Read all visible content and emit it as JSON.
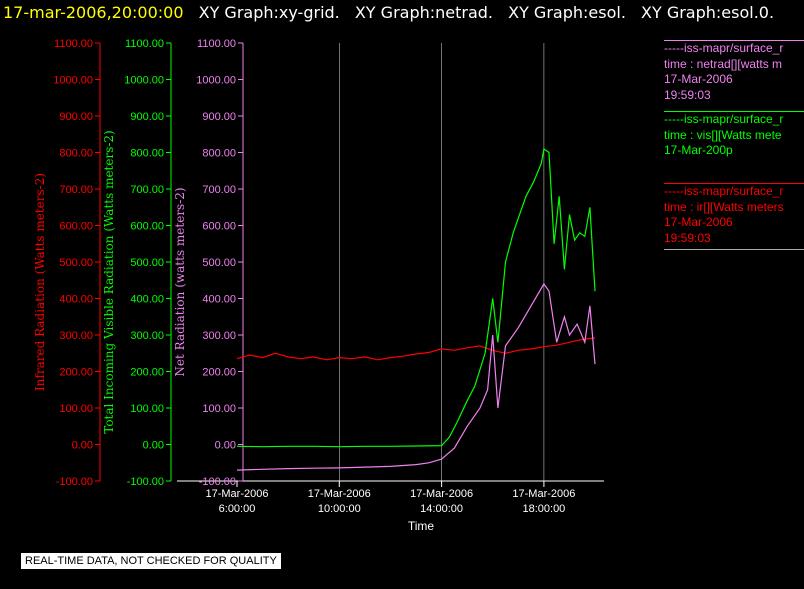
{
  "header": {
    "timestamp": "17-mar-2006,20:00:00",
    "graph_titles": [
      "XY Graph:xy-grid.",
      "XY Graph:netrad.",
      "XY Graph:esol.",
      "XY Graph:esol.0."
    ]
  },
  "colors": {
    "background": "#000000",
    "infrared": "#ff0000",
    "visible": "#00ff00",
    "net": "#ee82ee",
    "timestamp": "#ffff00",
    "grid": "#ffffff"
  },
  "legend": [
    {
      "source": "-----iss-mapr/surface_r",
      "series": "time : netrad[][watts m",
      "date": "17-Mar-2006",
      "time": "19:59:03",
      "color": "#ee82ee"
    },
    {
      "source": "-----iss-mapr/surface_r",
      "series": "time : vis[][Watts mete",
      "date": "17-Mar-200p",
      "time": "",
      "color": "#00ff00"
    },
    {
      "source": "-----iss-mapr/surface_r",
      "series": "time : ir[][Watts meters",
      "date": "17-Mar-2006",
      "time": "19:59:03",
      "color": "#ff0000"
    }
  ],
  "notice": "REAL-TIME DATA, NOT CHECKED FOR QUALITY",
  "chart_data": {
    "type": "line",
    "xlabel": "Time",
    "x_ticks": [
      {
        "date": "17-Mar-2006",
        "time": "6:00:00",
        "hours": 6
      },
      {
        "date": "17-Mar-2006",
        "time": "10:00:00",
        "hours": 10
      },
      {
        "date": "17-Mar-2006",
        "time": "14:00:00",
        "hours": 14
      },
      {
        "date": "17-Mar-2006",
        "time": "18:00:00",
        "hours": 18
      }
    ],
    "xlim_hours": [
      6,
      20.35
    ],
    "ylim": [
      -100,
      1100
    ],
    "y_ticks": [
      "1100.00",
      "1000.00",
      "900.00",
      "800.00",
      "700.00",
      "600.00",
      "500.00",
      "400.00",
      "300.00",
      "200.00",
      "100.00",
      "0.00",
      "-100.00"
    ],
    "axes": [
      {
        "label": "Infrared Radiation (Watts meters-2)",
        "color": "#ff0000"
      },
      {
        "label": "Total Incoming Visible Radiation (Watts meters-2)",
        "color": "#00ff00"
      },
      {
        "label": "Net Radiation (watts meters-2)",
        "color": "#ee82ee"
      }
    ],
    "grid": "vertical-only",
    "series": [
      {
        "name": "ir",
        "color": "#ff0000",
        "x": [
          6,
          6.5,
          7,
          7.5,
          8,
          8.5,
          9,
          9.5,
          10,
          10.5,
          11,
          11.5,
          12,
          12.5,
          13,
          13.5,
          14,
          14.5,
          15,
          15.5,
          16,
          16.5,
          17,
          17.5,
          18,
          18.5,
          19,
          19.5,
          20
        ],
        "y": [
          235,
          245,
          238,
          250,
          240,
          235,
          240,
          232,
          238,
          235,
          240,
          232,
          238,
          242,
          248,
          252,
          262,
          258,
          265,
          270,
          258,
          250,
          258,
          262,
          268,
          272,
          280,
          288,
          292
        ]
      },
      {
        "name": "vis",
        "color": "#00ff00",
        "x": [
          6,
          7,
          8,
          9,
          10,
          11,
          12,
          13,
          14,
          14.3,
          14.6,
          15,
          15.3,
          15.7,
          16,
          16.2,
          16.5,
          16.8,
          17,
          17.3,
          17.6,
          17.9,
          18,
          18.2,
          18.4,
          18.6,
          18.8,
          19,
          19.2,
          19.4,
          19.6,
          19.8,
          20
        ],
        "y": [
          -5,
          -6,
          -5,
          -5,
          -6,
          -5,
          -5,
          -4,
          -3,
          20,
          60,
          120,
          160,
          250,
          400,
          280,
          500,
          580,
          620,
          680,
          720,
          770,
          810,
          800,
          550,
          680,
          480,
          630,
          560,
          580,
          570,
          650,
          420
        ]
      },
      {
        "name": "netrad",
        "color": "#ee82ee",
        "x": [
          6,
          7,
          8,
          9,
          10,
          11,
          12,
          13,
          13.5,
          14,
          14.5,
          15,
          15.5,
          15.8,
          16,
          16.2,
          16.5,
          17,
          17.5,
          18,
          18.2,
          18.5,
          18.8,
          19,
          19.3,
          19.6,
          19.8,
          20
        ],
        "y": [
          -70,
          -68,
          -66,
          -65,
          -64,
          -62,
          -60,
          -55,
          -50,
          -40,
          -10,
          50,
          100,
          150,
          300,
          100,
          270,
          320,
          380,
          440,
          420,
          280,
          350,
          300,
          330,
          280,
          380,
          220
        ]
      }
    ]
  }
}
